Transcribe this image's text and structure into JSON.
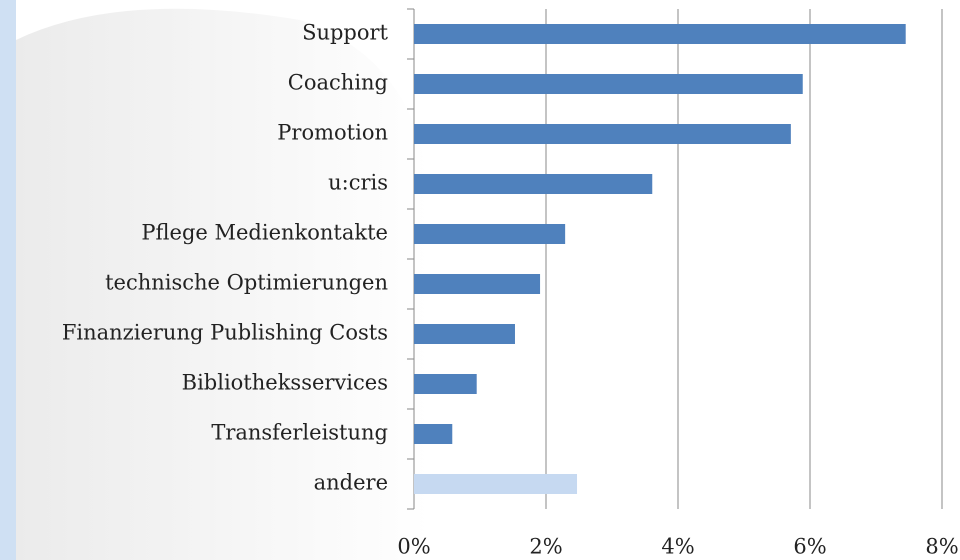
{
  "chart_data": {
    "type": "bar",
    "orientation": "horizontal",
    "categories": [
      "Support",
      "Coaching",
      "Promotion",
      "u:cris",
      "Pflege Medienkontakte",
      "technische Optimierungen",
      "Finanzierung Publishing Costs",
      "Bibliotheksservices",
      "Transferleistung",
      "andere"
    ],
    "values": [
      7.45,
      5.89,
      5.71,
      3.61,
      2.29,
      1.91,
      1.53,
      0.95,
      0.58,
      2.47
    ],
    "colors": [
      "#4f81bd",
      "#4f81bd",
      "#4f81bd",
      "#4f81bd",
      "#4f81bd",
      "#4f81bd",
      "#4f81bd",
      "#4f81bd",
      "#4f81bd",
      "#c6d9f1"
    ],
    "xlim": [
      0,
      8
    ],
    "xticks": [
      {
        "value": 0,
        "label": "0%"
      },
      {
        "value": 2,
        "label": "2%"
      },
      {
        "value": 4,
        "label": "4%"
      },
      {
        "value": 6,
        "label": "6%"
      },
      {
        "value": 8,
        "label": "8%"
      }
    ],
    "grid": true
  }
}
